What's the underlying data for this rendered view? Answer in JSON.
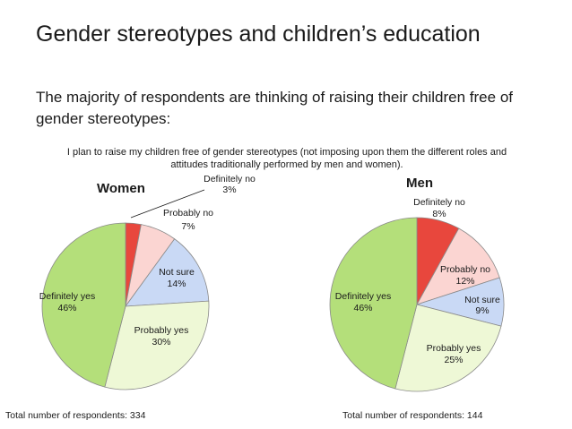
{
  "slide": {
    "title": "Gender stereotypes and children’s education",
    "subtitle": "The majority of respondents are thinking of raising their children free of gender stereotypes:"
  },
  "chart_data": {
    "type": "pie",
    "title": "I plan to raise my children free of gender stereotypes (not imposing upon them the different roles and attitudes traditionally performed by men and women).",
    "slice_colors": {
      "Definitely no": "#e8473d",
      "Probably no": "#fbd5d2",
      "Not sure": "#c9d9f5",
      "Probably yes": "#eef8d6",
      "Definitely yes": "#b4df7a"
    },
    "pies": [
      {
        "name": "Women",
        "total_label": "Total number of respondents: 334",
        "slices": [
          {
            "label": "Definitely no",
            "value": 3,
            "value_label": "3%"
          },
          {
            "label": "Probably no",
            "value": 7,
            "value_label": "7%"
          },
          {
            "label": "Not sure",
            "value": 14,
            "value_label": "14%"
          },
          {
            "label": "Probably yes",
            "value": 30,
            "value_label": "30%"
          },
          {
            "label": "Definitely yes",
            "value": 46,
            "value_label": "46%"
          }
        ]
      },
      {
        "name": "Men",
        "total_label": "Total number of respondents: 144",
        "slices": [
          {
            "label": "Definitely no",
            "value": 8,
            "value_label": "8%"
          },
          {
            "label": "Probably no",
            "value": 12,
            "value_label": "12%"
          },
          {
            "label": "Not sure",
            "value": 9,
            "value_label": "9%"
          },
          {
            "label": "Probably yes",
            "value": 25,
            "value_label": "25%"
          },
          {
            "label": "Definitely yes",
            "value": 46,
            "value_label": "46%"
          }
        ]
      }
    ]
  }
}
